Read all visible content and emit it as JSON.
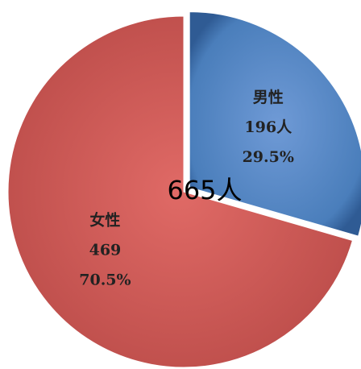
{
  "chart_data": {
    "type": "pie",
    "categories": [
      "男性",
      "女性"
    ],
    "values": [
      196,
      469
    ],
    "value_labels": [
      "196人",
      "469"
    ],
    "percents": [
      29.5,
      70.5
    ],
    "percent_labels": [
      "29.5%",
      "70.5%"
    ],
    "colors": [
      "#4a7ebb",
      "#c0504d"
    ],
    "center_label": "665人",
    "exploded": [
      true,
      false
    ]
  }
}
